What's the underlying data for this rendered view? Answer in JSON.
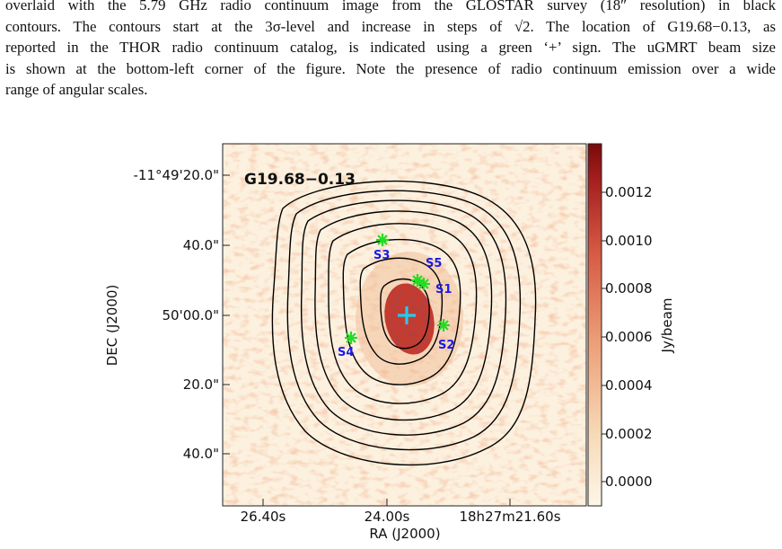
{
  "caption": {
    "lines": [
      "overlaid with the 5.79 GHz radio continuum image from the GLOSTAR survey (18″ resolution) in black",
      "contours. The contours start at the 3σ-level and increase in steps of √2. The location of G19.68−0.13, as",
      "reported in the THOR radio continuum catalog, is indicated using a green ‘+’ sign. The uGMRT beam size",
      "is shown at the bottom-left corner of the figure. Note the presence of radio continuum emission over a wide",
      "range of angular scales."
    ]
  },
  "figure": {
    "source_name": "G19.68−0.13",
    "y_axis_label": "DEC (J2000)",
    "x_axis_label": "RA (J2000)",
    "colorbar_label": "Jy/beam",
    "y_ticks": [
      "-11°49'20.0\"",
      "40.0\"",
      "50'00.0\"",
      "20.0\"",
      "40.0\""
    ],
    "x_ticks": [
      "26.40s",
      "24.00s",
      "18h27m21.60s"
    ],
    "colorbar_ticks": [
      "0.0012",
      "0.0010",
      "0.0008",
      "0.0006",
      "0.0004",
      "0.0002",
      "0.0000"
    ],
    "sources": [
      {
        "label": "S1",
        "marker": "asterisk"
      },
      {
        "label": "S2",
        "marker": "asterisk"
      },
      {
        "label": "S3",
        "marker": "asterisk"
      },
      {
        "label": "S4",
        "marker": "asterisk"
      },
      {
        "label": "S5",
        "marker": "asterisk"
      }
    ],
    "colors": {
      "contour": "#000000",
      "source_marker": "#22dd22",
      "source_label": "#1a1ae6",
      "thor_marker": "#22ccee",
      "colormap_low": "#fdf6e8",
      "colormap_high": "#7a0a0a"
    }
  }
}
